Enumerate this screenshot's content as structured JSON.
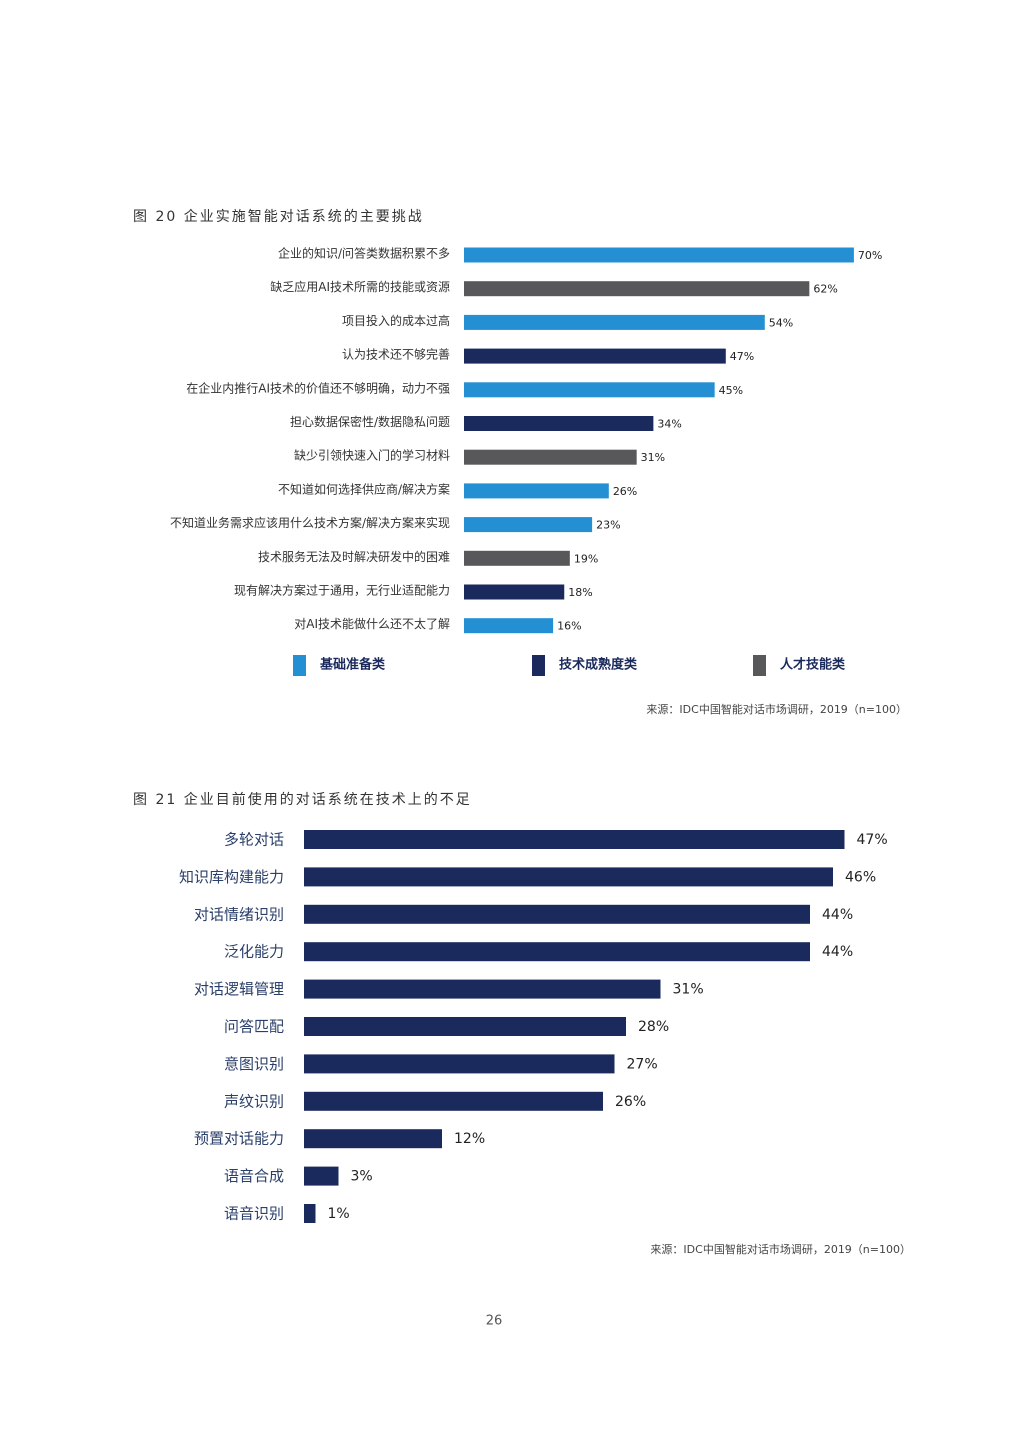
{
  "chart_data": [
    {
      "type": "bar",
      "title": "图 20 企业实施智能对话系统的主要挑战",
      "categories": [
        "企业的知识/问答类数据积累不多",
        "缺乏应用AI技术所需的技能或资源",
        "项目投入的成本过高",
        "认为技术还不够完善",
        "在企业内推行AI技术的价值还不够明确，动力不强",
        "担心数据保密性/数据隐私问题",
        "缺少引领快速入门的学习材料",
        "不知道如何选择供应商/解决方案",
        "不知道业务需求应该用什么技术方案/解决方案来实现",
        "技术服务无法及时解决研发中的困难",
        "现有解决方案过于通用，无行业适配能力",
        "对AI技术能做什么还不太了解"
      ],
      "series": [
        {
          "name": "基础准备类",
          "color": "#2490d3",
          "values": [
            70,
            null,
            54,
            null,
            45,
            null,
            null,
            26,
            23,
            null,
            null,
            16
          ],
          "value_labels": [
            "70%",
            null,
            "54%",
            null,
            "45%",
            null,
            null,
            "26%",
            "23%",
            null,
            null,
            "16%"
          ]
        },
        {
          "name": "技术成熟度类",
          "color": "#1b2a5c",
          "values": [
            null,
            null,
            null,
            47,
            null,
            34,
            null,
            null,
            null,
            null,
            18,
            null
          ],
          "value_labels": [
            null,
            null,
            null,
            "47%",
            null,
            "34%",
            null,
            null,
            null,
            null,
            "18%",
            null
          ]
        },
        {
          "name": "人才技能类",
          "color": "#58585a",
          "values": [
            null,
            62,
            null,
            null,
            null,
            null,
            31,
            null,
            null,
            19,
            null,
            null
          ],
          "value_labels": [
            null,
            "62%",
            null,
            null,
            null,
            null,
            "31%",
            null,
            null,
            "19%",
            null,
            null
          ]
        }
      ],
      "source": "来源：IDC中国智能对话市场调研，2019（n=100）"
    },
    {
      "type": "bar",
      "title": "图 21 企业目前使用的对话系统在技术上的不足",
      "categories": [
        "多轮对话",
        "知识库构建能力",
        "对话情绪识别",
        "泛化能力",
        "对话逻辑管理",
        "问答匹配",
        "意图识别",
        "声纹识别",
        "预置对话能力",
        "语音合成",
        "语音识别"
      ],
      "values": [
        47,
        46,
        44,
        44,
        31,
        28,
        27,
        26,
        12,
        3,
        1
      ],
      "value_labels": [
        "47%",
        "46%",
        "44%",
        "44%",
        "31%",
        "28%",
        "27%",
        "26%",
        "12%",
        "3%",
        "1%"
      ],
      "color": "#1b2a5c",
      "source": "来源：IDC中国智能对话市场调研，2019（n=100）"
    }
  ],
  "page_number": "26"
}
